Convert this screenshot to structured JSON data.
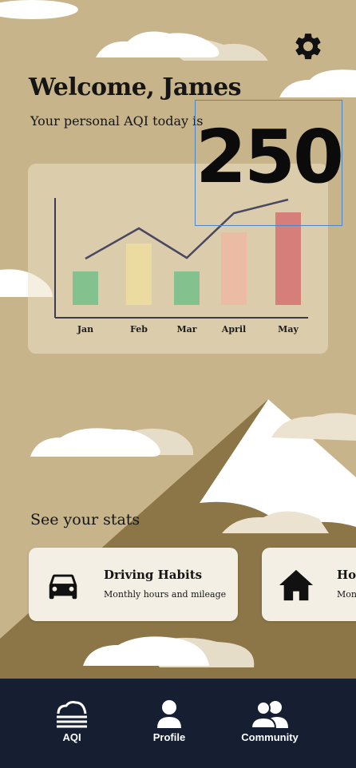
{
  "header": {
    "welcome_text": "Welcome, James",
    "subtitle": "Your personal AQI today is",
    "aqi_value": "250",
    "settings_icon": "gear-icon"
  },
  "chart_data": {
    "type": "bar",
    "categories": [
      "Jan",
      "Feb",
      "Mar",
      "April",
      "May"
    ],
    "values": [
      42,
      77,
      42,
      91,
      116
    ],
    "trend_line": [
      58,
      96,
      59,
      115,
      132
    ],
    "ylim": [
      0,
      150
    ],
    "title": "",
    "xlabel": "",
    "ylabel": "",
    "grid": false,
    "bar_colors": [
      "#83c28f",
      "#ecdba0",
      "#83c28f",
      "#ebbba3",
      "#d67e7a"
    ]
  },
  "stats": {
    "title": "See your stats",
    "cards": [
      {
        "title": "Driving Habits",
        "subtitle": "Monthly hours and mileage",
        "icon": "car-icon"
      },
      {
        "title": "Hom",
        "subtitle": "Mon",
        "icon": "home-icon"
      }
    ]
  },
  "nav": {
    "items": [
      {
        "label": "AQI",
        "icon": "aqi-cloud-icon"
      },
      {
        "label": "Profile",
        "icon": "person-icon"
      },
      {
        "label": "Community",
        "icon": "group-icon"
      }
    ]
  },
  "colors": {
    "background": "#c8b48a",
    "mountain": "#8c7647",
    "snow": "#ffffff",
    "navbar": "#161f32",
    "card": "#f4efe4"
  }
}
